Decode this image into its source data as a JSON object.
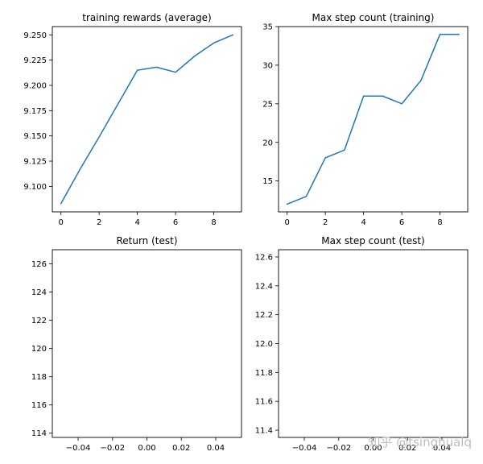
{
  "watermark": "知乎 @tsinghualq",
  "chart_data": [
    {
      "type": "line",
      "title": "training rewards (average)",
      "xlabel": "",
      "ylabel": "",
      "x": [
        0,
        1,
        2,
        3,
        4,
        5,
        6,
        7,
        8,
        9
      ],
      "series": [
        {
          "values": [
            9.083,
            9.117,
            9.149,
            9.182,
            9.215,
            9.218,
            9.213,
            9.229,
            9.242,
            9.25
          ],
          "color": "#1f77b4"
        }
      ],
      "xlim": [
        -0.45,
        9.45
      ],
      "ylim": [
        9.0748,
        9.2582
      ],
      "xticks": [
        0,
        2,
        4,
        6,
        8
      ],
      "xtick_labels": [
        "0",
        "2",
        "4",
        "6",
        "8"
      ],
      "yticks": [
        9.1,
        9.125,
        9.15,
        9.175,
        9.2,
        9.225,
        9.25
      ],
      "ytick_labels": [
        "9.100",
        "9.125",
        "9.150",
        "9.175",
        "9.200",
        "9.225",
        "9.250"
      ],
      "grid": false
    },
    {
      "type": "line",
      "title": "Max step count (training)",
      "xlabel": "",
      "ylabel": "",
      "x": [
        0,
        1,
        2,
        3,
        4,
        5,
        6,
        7,
        8,
        9
      ],
      "series": [
        {
          "values": [
            12,
            13,
            18,
            19,
            26,
            26,
            25,
            28,
            34,
            34
          ],
          "color": "#1f77b4"
        }
      ],
      "xlim": [
        -0.45,
        9.45
      ],
      "ylim": [
        11.0,
        35.0
      ],
      "xticks": [
        0,
        2,
        4,
        6,
        8
      ],
      "xtick_labels": [
        "0",
        "2",
        "4",
        "6",
        "8"
      ],
      "yticks": [
        15,
        20,
        25,
        30,
        35
      ],
      "ytick_labels": [
        "15",
        "20",
        "25",
        "30",
        "35"
      ],
      "grid": false
    },
    {
      "type": "line",
      "title": "Return (test)",
      "xlabel": "",
      "ylabel": "",
      "x": [],
      "series": [],
      "xlim": [
        -0.055,
        0.055
      ],
      "ylim": [
        113.7,
        127.0
      ],
      "xticks": [
        -0.04,
        -0.02,
        0.0,
        0.02,
        0.04
      ],
      "xtick_labels": [
        "−0.04",
        "−0.02",
        "0.00",
        "0.02",
        "0.04"
      ],
      "yticks": [
        114,
        116,
        118,
        120,
        122,
        124,
        126
      ],
      "ytick_labels": [
        "114",
        "116",
        "118",
        "120",
        "122",
        "124",
        "126"
      ],
      "grid": false
    },
    {
      "type": "line",
      "title": "Max step count (test)",
      "xlabel": "",
      "ylabel": "",
      "x": [],
      "series": [],
      "xlim": [
        -0.055,
        0.055
      ],
      "ylim": [
        11.35,
        12.65
      ],
      "xticks": [
        -0.04,
        -0.02,
        0.0,
        0.02,
        0.04
      ],
      "xtick_labels": [
        "−0.04",
        "−0.02",
        "0.00",
        "0.02",
        "0.04"
      ],
      "yticks": [
        11.4,
        11.6,
        11.8,
        12.0,
        12.2,
        12.4,
        12.6
      ],
      "ytick_labels": [
        "11.4",
        "11.6",
        "11.8",
        "12.0",
        "12.2",
        "12.4",
        "12.6"
      ],
      "grid": false
    }
  ]
}
